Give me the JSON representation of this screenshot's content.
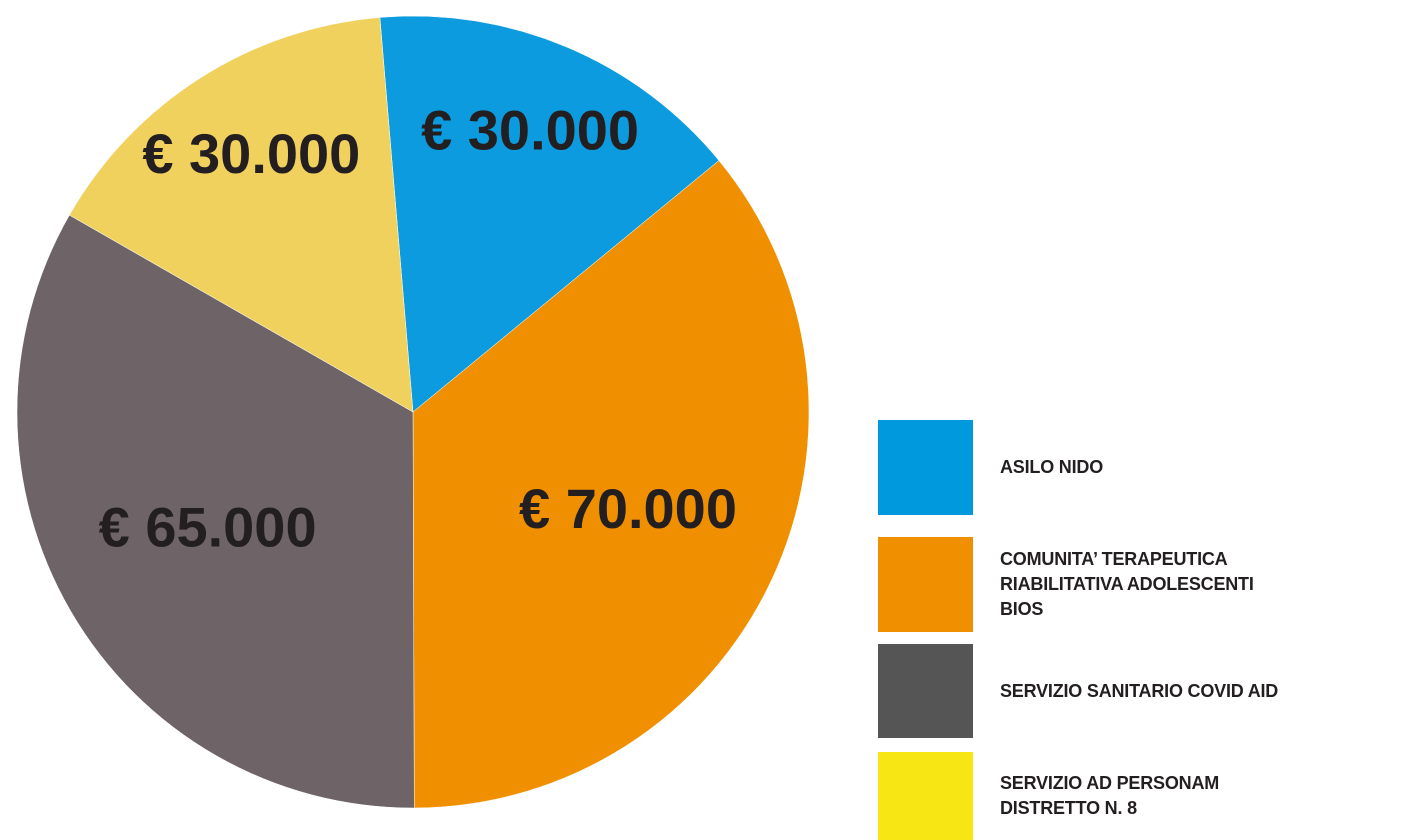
{
  "chart_data": {
    "type": "pie",
    "categories": [
      "ASILO NIDO",
      "COMUNITA’ TERAPEUTICA\nRIABILITATIVA ADOLESCENTI\nBIOS",
      "SERVIZIO SANITARIO COVID AID",
      "SERVIZIO AD PERSONAM\nDISTRETTO N. 8"
    ],
    "values": [
      30000,
      70000,
      65000,
      30000
    ],
    "value_labels": [
      "€ 30.000",
      "€ 70.000",
      "€ 65.000",
      "€ 30.000"
    ],
    "colors": [
      "#0b9bde",
      "#f09000",
      "#6e6468",
      "#f0d15e"
    ],
    "legend_colors": [
      "#0099dd",
      "#f09000",
      "#555555",
      "#f7e614"
    ],
    "legend": "right"
  }
}
